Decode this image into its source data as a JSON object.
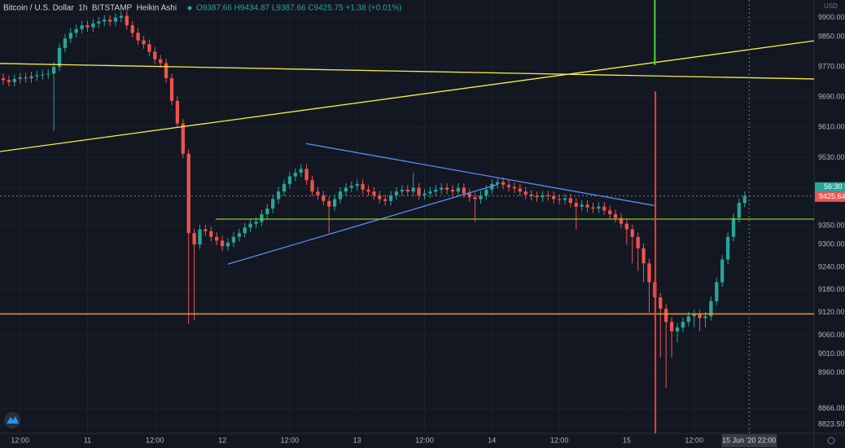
{
  "chart_data": {
    "type": "candlestick",
    "title": "Bitcoin / U.S. Dollar  1h  BITSTAMP  Heikin Ashi",
    "legend_text": "O9387.66 H9434.87 L9387.66 C9425.75 +1.38 (+0.01%)",
    "currency": "USD",
    "up_color": "#26a69a",
    "down_color": "#ef5350",
    "xlim": [
      -0.58,
      144.35
    ],
    "ylim": [
      8800,
      9947
    ],
    "xticks": [
      {
        "value": 3,
        "label": "12:00"
      },
      {
        "value": 15,
        "label": "11"
      },
      {
        "value": 27,
        "label": "12:00"
      },
      {
        "value": 39,
        "label": "12"
      },
      {
        "value": 51,
        "label": "12:00"
      },
      {
        "value": 63,
        "label": "13"
      },
      {
        "value": 75,
        "label": "12:00"
      },
      {
        "value": 87,
        "label": "14"
      },
      {
        "value": 99,
        "label": "12:00"
      },
      {
        "value": 111,
        "label": "15"
      },
      {
        "value": 123,
        "label": "12:00"
      }
    ],
    "yticks": [
      {
        "value": 9900,
        "label": "9900.00"
      },
      {
        "value": 9850,
        "label": "9850.00"
      },
      {
        "value": 9770,
        "label": "9770.00"
      },
      {
        "value": 9690,
        "label": "9690.00"
      },
      {
        "value": 9610,
        "label": "9610.00"
      },
      {
        "value": 9530,
        "label": "9530.00"
      },
      {
        "value": 9450,
        "label": "9450.00"
      },
      {
        "value": 9350,
        "label": "9350.00"
      },
      {
        "value": 9300,
        "label": "9300.00"
      },
      {
        "value": 9240,
        "label": "9240.00"
      },
      {
        "value": 9180,
        "label": "9180.00"
      },
      {
        "value": 9120,
        "label": "9120.00"
      },
      {
        "value": 9060,
        "label": "9060.00"
      },
      {
        "value": 9010,
        "label": "9010.00"
      },
      {
        "value": 8960,
        "label": "8960.00"
      },
      {
        "value": 8866,
        "label": "8866.00"
      },
      {
        "value": 8823.5,
        "label": "8823.50"
      }
    ],
    "ohlc": [
      [
        9740,
        9752,
        9723,
        9735
      ],
      [
        9735,
        9747,
        9718,
        9730
      ],
      [
        9730,
        9750,
        9718,
        9738
      ],
      [
        9738,
        9754,
        9726,
        9742
      ],
      [
        9742,
        9754,
        9728,
        9740
      ],
      [
        9740,
        9757,
        9728,
        9745
      ],
      [
        9745,
        9760,
        9733,
        9748
      ],
      [
        9748,
        9762,
        9736,
        9750
      ],
      [
        9750,
        9764,
        9738,
        9752
      ],
      [
        9752,
        9782,
        9600,
        9770
      ],
      [
        9770,
        9832,
        9758,
        9820
      ],
      [
        9820,
        9857,
        9808,
        9845
      ],
      [
        9845,
        9872,
        9833,
        9860
      ],
      [
        9860,
        9882,
        9848,
        9870
      ],
      [
        9870,
        9892,
        9858,
        9880
      ],
      [
        9880,
        9892,
        9863,
        9875
      ],
      [
        9875,
        9897,
        9863,
        9885
      ],
      [
        9885,
        9902,
        9873,
        9890
      ],
      [
        9890,
        9907,
        9878,
        9895
      ],
      [
        9895,
        9907,
        9878,
        9890
      ],
      [
        9890,
        9912,
        9878,
        9900
      ],
      [
        9900,
        9917,
        9888,
        9905
      ],
      [
        9905,
        9917,
        9868,
        9880
      ],
      [
        9880,
        9892,
        9848,
        9860
      ],
      [
        9860,
        9872,
        9828,
        9840
      ],
      [
        9840,
        9852,
        9818,
        9830
      ],
      [
        9830,
        9842,
        9798,
        9810
      ],
      [
        9810,
        9822,
        9778,
        9790
      ],
      [
        9790,
        9802,
        9768,
        9780
      ],
      [
        9780,
        9792,
        9728,
        9740
      ],
      [
        9740,
        9752,
        9668,
        9680
      ],
      [
        9680,
        9692,
        9608,
        9620
      ],
      [
        9620,
        9632,
        9528,
        9540
      ],
      [
        9540,
        9552,
        9090,
        9330
      ],
      [
        9330,
        9342,
        9100,
        9300
      ],
      [
        9300,
        9352,
        9288,
        9340
      ],
      [
        9340,
        9352,
        9323,
        9335
      ],
      [
        9335,
        9347,
        9308,
        9320
      ],
      [
        9320,
        9332,
        9298,
        9310
      ],
      [
        9310,
        9322,
        9283,
        9295
      ],
      [
        9295,
        9317,
        9283,
        9305
      ],
      [
        9305,
        9332,
        9293,
        9320
      ],
      [
        9320,
        9342,
        9308,
        9330
      ],
      [
        9330,
        9357,
        9318,
        9345
      ],
      [
        9345,
        9367,
        9333,
        9355
      ],
      [
        9355,
        9372,
        9343,
        9360
      ],
      [
        9360,
        9392,
        9348,
        9380
      ],
      [
        9380,
        9407,
        9368,
        9395
      ],
      [
        9395,
        9432,
        9383,
        9420
      ],
      [
        9420,
        9452,
        9408,
        9440
      ],
      [
        9440,
        9472,
        9428,
        9460
      ],
      [
        9460,
        9492,
        9448,
        9480
      ],
      [
        9480,
        9502,
        9468,
        9490
      ],
      [
        9490,
        9512,
        9478,
        9500
      ],
      [
        9500,
        9512,
        9458,
        9470
      ],
      [
        9470,
        9482,
        9428,
        9440
      ],
      [
        9440,
        9452,
        9418,
        9430
      ],
      [
        9430,
        9442,
        9403,
        9415
      ],
      [
        9415,
        9427,
        9330,
        9400
      ],
      [
        9400,
        9432,
        9388,
        9420
      ],
      [
        9420,
        9452,
        9408,
        9440
      ],
      [
        9440,
        9462,
        9428,
        9450
      ],
      [
        9450,
        9467,
        9438,
        9455
      ],
      [
        9455,
        9472,
        9443,
        9460
      ],
      [
        9460,
        9472,
        9433,
        9445
      ],
      [
        9445,
        9457,
        9428,
        9440
      ],
      [
        9440,
        9452,
        9418,
        9430
      ],
      [
        9430,
        9442,
        9408,
        9420
      ],
      [
        9420,
        9432,
        9403,
        9415
      ],
      [
        9415,
        9442,
        9403,
        9430
      ],
      [
        9430,
        9452,
        9418,
        9440
      ],
      [
        9440,
        9457,
        9428,
        9445
      ],
      [
        9445,
        9457,
        9428,
        9440
      ],
      [
        9440,
        9490,
        9428,
        9450
      ],
      [
        9450,
        9462,
        9418,
        9430
      ],
      [
        9430,
        9447,
        9418,
        9435
      ],
      [
        9435,
        9452,
        9423,
        9440
      ],
      [
        9440,
        9457,
        9428,
        9445
      ],
      [
        9445,
        9462,
        9433,
        9450
      ],
      [
        9450,
        9462,
        9433,
        9445
      ],
      [
        9445,
        9457,
        9428,
        9440
      ],
      [
        9440,
        9462,
        9428,
        9450
      ],
      [
        9450,
        9462,
        9423,
        9435
      ],
      [
        9435,
        9447,
        9413,
        9425
      ],
      [
        9425,
        9437,
        9360,
        9420
      ],
      [
        9420,
        9442,
        9408,
        9430
      ],
      [
        9430,
        9457,
        9418,
        9445
      ],
      [
        9445,
        9472,
        9433,
        9460
      ],
      [
        9460,
        9477,
        9448,
        9465
      ],
      [
        9465,
        9477,
        9446,
        9458
      ],
      [
        9458,
        9470,
        9440,
        9452
      ],
      [
        9452,
        9464,
        9436,
        9448
      ],
      [
        9448,
        9460,
        9428,
        9440
      ],
      [
        9440,
        9452,
        9420,
        9432
      ],
      [
        9432,
        9444,
        9416,
        9428
      ],
      [
        9428,
        9440,
        9413,
        9425
      ],
      [
        9425,
        9442,
        9413,
        9430
      ],
      [
        9430,
        9442,
        9416,
        9428
      ],
      [
        9428,
        9440,
        9408,
        9420
      ],
      [
        9420,
        9432,
        9406,
        9418
      ],
      [
        9418,
        9434,
        9406,
        9422
      ],
      [
        9422,
        9434,
        9398,
        9410
      ],
      [
        9410,
        9422,
        9340,
        9400
      ],
      [
        9400,
        9417,
        9388,
        9405
      ],
      [
        9405,
        9417,
        9386,
        9398
      ],
      [
        9398,
        9410,
        9383,
        9395
      ],
      [
        9395,
        9412,
        9383,
        9400
      ],
      [
        9400,
        9412,
        9378,
        9390
      ],
      [
        9390,
        9402,
        9368,
        9380
      ],
      [
        9380,
        9392,
        9358,
        9370
      ],
      [
        9370,
        9382,
        9343,
        9355
      ],
      [
        9355,
        9367,
        9300,
        9340
      ],
      [
        9340,
        9352,
        9250,
        9320
      ],
      [
        9320,
        9332,
        9230,
        9290
      ],
      [
        9290,
        9302,
        9200,
        9250
      ],
      [
        9250,
        9262,
        9120,
        9200
      ],
      [
        9200,
        9212,
        9100,
        9160
      ],
      [
        9160,
        9172,
        9000,
        9130
      ],
      [
        9130,
        9142,
        8920,
        9095
      ],
      [
        9095,
        9107,
        9000,
        9070
      ],
      [
        9070,
        9092,
        9040,
        9080
      ],
      [
        9080,
        9107,
        9068,
        9095
      ],
      [
        9095,
        9122,
        9083,
        9110
      ],
      [
        9110,
        9127,
        9080,
        9115
      ],
      [
        9115,
        9127,
        9070,
        9105
      ],
      [
        9105,
        9122,
        9080,
        9110
      ],
      [
        9110,
        9162,
        9098,
        9150
      ],
      [
        9150,
        9212,
        9138,
        9200
      ],
      [
        9200,
        9272,
        9188,
        9260
      ],
      [
        9260,
        9332,
        9248,
        9320
      ],
      [
        9320,
        9382,
        9308,
        9370
      ],
      [
        9370,
        9422,
        9358,
        9410
      ],
      [
        9410,
        9440,
        9398,
        9428
      ]
    ],
    "drawings": [
      {
        "color": "#f5ef42",
        "points": [
          [
            -0.58,
            9779
          ],
          [
            144.35,
            9738
          ]
        ]
      },
      {
        "color": "#f5ef42",
        "points": [
          [
            -0.58,
            9546
          ],
          [
            144.35,
            9839
          ]
        ]
      },
      {
        "color": "#5b8def",
        "points": [
          [
            53.9,
            9567
          ],
          [
            115.9,
            9403
          ]
        ]
      },
      {
        "color": "#5b8def",
        "points": [
          [
            40,
            9248
          ],
          [
            88.1,
            9459
          ]
        ]
      },
      {
        "color": "#7ed321",
        "points": [
          [
            37.8,
            9367
          ],
          [
            144.35,
            9367
          ]
        ]
      },
      {
        "color": "#f5a623",
        "points": [
          [
            -0.58,
            9116
          ],
          [
            144.35,
            9116
          ]
        ]
      },
      {
        "color": "#f23b30",
        "points": [
          [
            116.1,
            9705
          ],
          [
            116.1,
            8800
          ]
        ]
      },
      {
        "color": "#4cdb3c",
        "points": [
          [
            116,
            9947
          ],
          [
            116,
            9775
          ]
        ]
      }
    ],
    "crosshair": {
      "x": 132.8,
      "x_label": "15 Jun '20   22:00",
      "price": 9428.53
    },
    "countdown": "56:30",
    "last_price": 9425.64
  }
}
